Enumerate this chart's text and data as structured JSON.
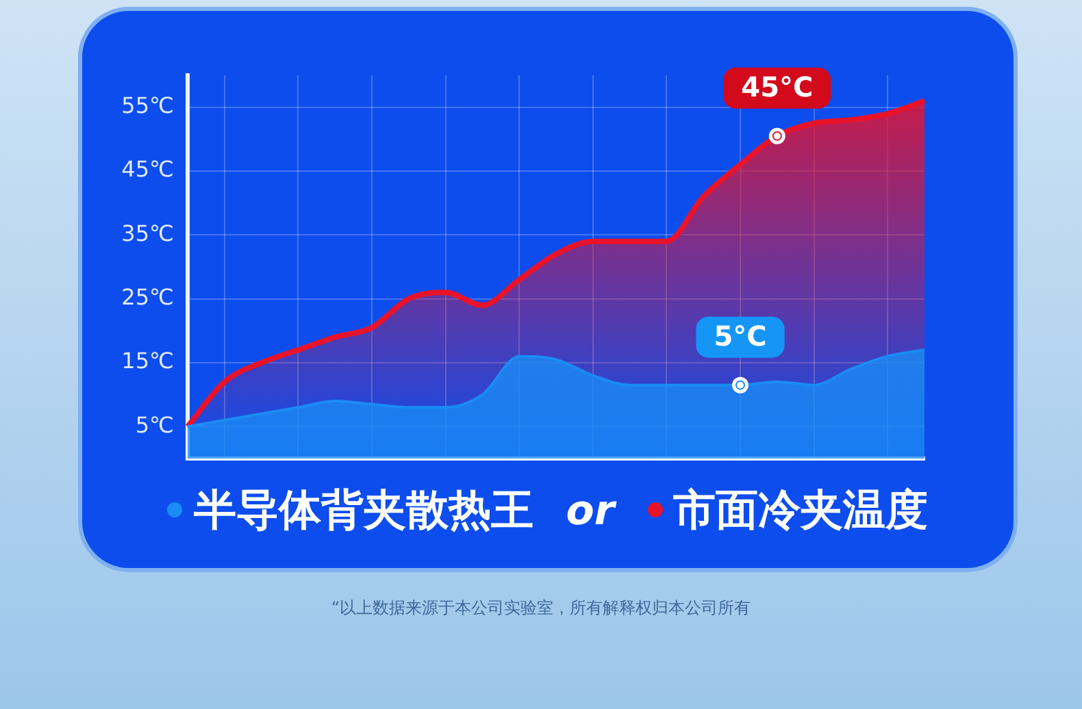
{
  "chart_data": {
    "type": "area",
    "categories": [
      null,
      null,
      null,
      null,
      null,
      null,
      null,
      null,
      null,
      null,
      null,
      null,
      null,
      null,
      null,
      null,
      null,
      null,
      null,
      null,
      null
    ],
    "series": [
      {
        "name": "半导体背夹散热王",
        "color": "#1a8cf5",
        "values": [
          5,
          6,
          7,
          8,
          9,
          8.5,
          8,
          8,
          10,
          16,
          15.5,
          13,
          11.5,
          11.5,
          11.5,
          11.5,
          12,
          11.5,
          14,
          16,
          17
        ]
      },
      {
        "name": "市面冷夹温度",
        "color": "#e8132b",
        "values": [
          5,
          12,
          15,
          17,
          19,
          20.5,
          25,
          26,
          24,
          28,
          32,
          34,
          34,
          34,
          41,
          46,
          50.5,
          52.5,
          53,
          54,
          56
        ]
      }
    ],
    "ylim": [
      0,
      60
    ],
    "yticks": [
      {
        "value": 5,
        "label": "5℃"
      },
      {
        "value": 15,
        "label": "15℃"
      },
      {
        "value": 25,
        "label": "25℃"
      },
      {
        "value": 35,
        "label": "35℃"
      },
      {
        "value": 45,
        "label": "45℃"
      },
      {
        "value": 55,
        "label": "55℃"
      }
    ],
    "grid": true,
    "legend": "bottom",
    "marker": "none",
    "tick_labels": "y",
    "annotations": [
      "5°C",
      "45°C",
      "or",
      "“以上数据来源于本公司实验室，所有解释权归本公司所有"
    ]
  }
}
